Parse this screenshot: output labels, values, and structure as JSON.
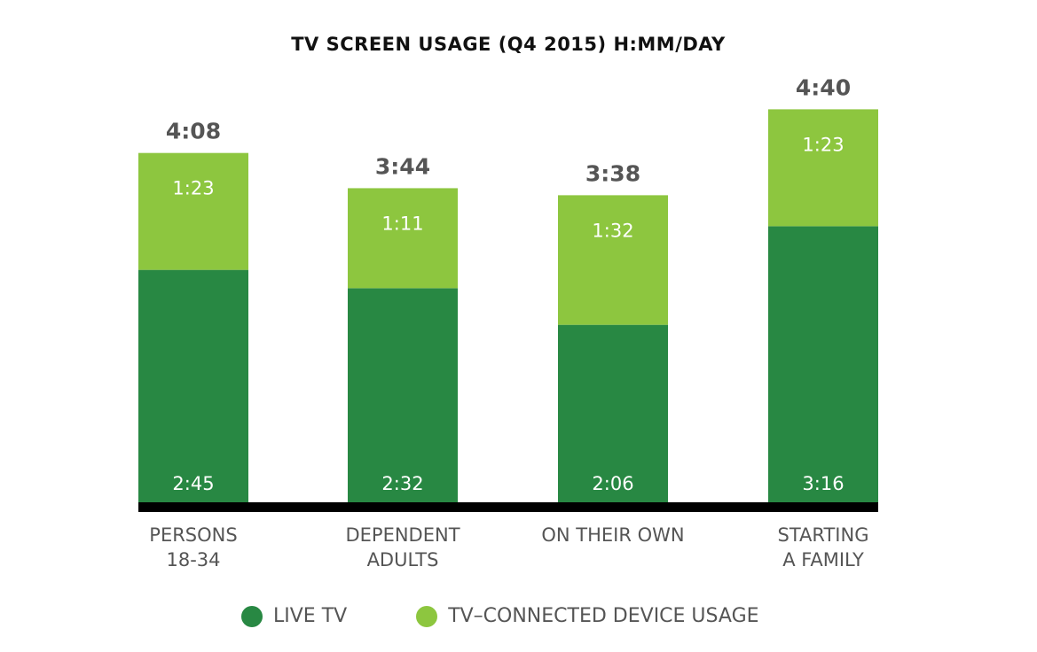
{
  "chart_data": {
    "type": "bar",
    "stacked": true,
    "title": "TV SCREEN USAGE (Q4 2015) H:MM/DAY",
    "categories": [
      [
        "PERSONS",
        "18-34"
      ],
      [
        "DEPENDENT",
        "ADULTS"
      ],
      [
        "ON THEIR OWN"
      ],
      [
        "STARTING",
        "A FAMILY"
      ]
    ],
    "series": [
      {
        "name": "LIVE TV",
        "color": "#288843",
        "values": [
          165,
          152,
          126,
          196
        ],
        "labels": [
          "2:45",
          "2:32",
          "2:06",
          "3:16"
        ]
      },
      {
        "name": "TV–CONNECTED DEVICE USAGE",
        "color": "#8dc63f",
        "values": [
          83,
          71,
          92,
          83
        ],
        "labels": [
          "1:23",
          "1:11",
          "1:32",
          "1:23"
        ]
      }
    ],
    "totals": [
      248,
      224,
      218,
      280
    ],
    "total_labels": [
      "4:08",
      "3:44",
      "3:38",
      "4:40"
    ],
    "value_unit": "minutes per day",
    "legend_position": "bottom",
    "grid": false
  }
}
